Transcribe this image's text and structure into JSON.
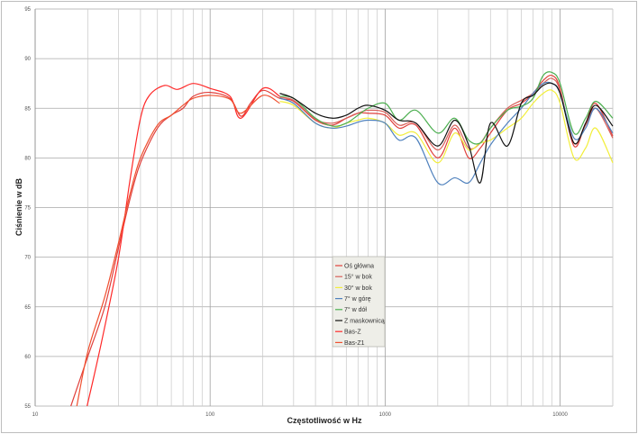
{
  "chart_data": {
    "type": "line",
    "xlabel": "Częstotliwość w Hz",
    "ylabel": "Ciśnienie w dB",
    "xscale": "log",
    "xlim": [
      10,
      20000
    ],
    "ylim": [
      55,
      95
    ],
    "xticks": [
      10,
      100,
      1000,
      10000
    ],
    "xtick_labels": [
      "10",
      "100",
      "1000",
      "10000"
    ],
    "yticks": [
      55,
      60,
      65,
      70,
      75,
      80,
      85,
      90,
      95
    ],
    "ytick_labels": [
      "55",
      "60",
      "65",
      "70",
      "75",
      "80",
      "85",
      "90",
      "95"
    ],
    "grid": true,
    "legend": "center",
    "series": [
      {
        "name": "Oś główna",
        "color": "#e0403c",
        "points": [
          [
            16,
            55
          ],
          [
            20,
            60
          ],
          [
            25,
            65
          ],
          [
            30,
            71
          ],
          [
            35,
            76
          ],
          [
            40,
            79.5
          ],
          [
            50,
            83
          ],
          [
            60,
            84.3
          ],
          [
            70,
            85
          ],
          [
            80,
            86.2
          ],
          [
            100,
            86.6
          ],
          [
            130,
            86
          ],
          [
            150,
            84.2
          ],
          [
            170,
            85.5
          ],
          [
            200,
            86.8
          ],
          [
            250,
            86
          ],
          [
            300,
            85.7
          ],
          [
            400,
            83.8
          ],
          [
            500,
            83.3
          ],
          [
            600,
            84
          ],
          [
            700,
            84.5
          ],
          [
            800,
            84.5
          ],
          [
            1000,
            84.3
          ],
          [
            1200,
            83
          ],
          [
            1500,
            83.3
          ],
          [
            2000,
            80
          ],
          [
            2500,
            83
          ],
          [
            3000,
            80
          ],
          [
            3500,
            81
          ],
          [
            4000,
            82.5
          ],
          [
            5000,
            84.8
          ],
          [
            6000,
            85.5
          ],
          [
            7000,
            86.5
          ],
          [
            8000,
            87.8
          ],
          [
            9000,
            88.3
          ],
          [
            10000,
            87
          ],
          [
            12000,
            81.2
          ],
          [
            14000,
            83.5
          ],
          [
            16000,
            85.5
          ],
          [
            20000,
            82.2
          ]
        ]
      },
      {
        "name": "15° w bok",
        "color": "#d8605a",
        "points": [
          [
            250,
            86.1
          ],
          [
            300,
            85.8
          ],
          [
            400,
            83.9
          ],
          [
            500,
            83.5
          ],
          [
            600,
            84
          ],
          [
            700,
            84.5
          ],
          [
            800,
            84.8
          ],
          [
            1000,
            84.6
          ],
          [
            1200,
            83.3
          ],
          [
            1500,
            83.5
          ],
          [
            2000,
            80.8
          ],
          [
            2500,
            83.3
          ],
          [
            3000,
            81
          ],
          [
            3500,
            81.5
          ],
          [
            4000,
            83
          ],
          [
            5000,
            85
          ],
          [
            6000,
            85.8
          ],
          [
            7000,
            86.5
          ],
          [
            8000,
            87.5
          ],
          [
            9000,
            88
          ],
          [
            10000,
            86.8
          ],
          [
            12000,
            81.5
          ],
          [
            14000,
            83.3
          ],
          [
            16000,
            85
          ],
          [
            20000,
            82
          ]
        ]
      },
      {
        "name": "30° w bok",
        "color": "#f2ee3a",
        "points": [
          [
            250,
            85.7
          ],
          [
            300,
            85.3
          ],
          [
            400,
            83.5
          ],
          [
            500,
            83
          ],
          [
            600,
            83.5
          ],
          [
            700,
            83.8
          ],
          [
            800,
            84
          ],
          [
            1000,
            83.5
          ],
          [
            1200,
            82.3
          ],
          [
            1500,
            82.5
          ],
          [
            2000,
            79.5
          ],
          [
            2500,
            82.5
          ],
          [
            3000,
            80.8
          ],
          [
            3500,
            81.5
          ],
          [
            4000,
            81.8
          ],
          [
            5000,
            83
          ],
          [
            6000,
            84
          ],
          [
            7000,
            85.5
          ],
          [
            8000,
            86.5
          ],
          [
            9000,
            86.8
          ],
          [
            10000,
            85.5
          ],
          [
            12000,
            80
          ],
          [
            14000,
            81
          ],
          [
            16000,
            83
          ],
          [
            20000,
            79.5
          ]
        ]
      },
      {
        "name": "7° w górę",
        "color": "#4f81bd",
        "points": [
          [
            250,
            86
          ],
          [
            300,
            85.5
          ],
          [
            400,
            83.5
          ],
          [
            500,
            83
          ],
          [
            600,
            83.2
          ],
          [
            700,
            83.6
          ],
          [
            800,
            83.8
          ],
          [
            1000,
            83.5
          ],
          [
            1200,
            81.8
          ],
          [
            1500,
            82
          ],
          [
            2000,
            77.5
          ],
          [
            2500,
            78
          ],
          [
            3000,
            77.5
          ],
          [
            3500,
            79.5
          ],
          [
            4000,
            81.3
          ],
          [
            5000,
            83.5
          ],
          [
            6000,
            85
          ],
          [
            7000,
            86.5
          ],
          [
            8000,
            87.5
          ],
          [
            9000,
            87.5
          ],
          [
            10000,
            86.5
          ],
          [
            12000,
            82
          ],
          [
            14000,
            83
          ],
          [
            16000,
            85
          ],
          [
            20000,
            82.5
          ]
        ]
      },
      {
        "name": "7° w dół",
        "color": "#4caf50",
        "points": [
          [
            250,
            86.2
          ],
          [
            300,
            86
          ],
          [
            400,
            84
          ],
          [
            500,
            83.2
          ],
          [
            600,
            83.5
          ],
          [
            700,
            84.3
          ],
          [
            800,
            85
          ],
          [
            1000,
            85.5
          ],
          [
            1200,
            83.8
          ],
          [
            1500,
            84.8
          ],
          [
            2000,
            82.5
          ],
          [
            2500,
            84
          ],
          [
            3000,
            81.8
          ],
          [
            3500,
            81.5
          ],
          [
            4000,
            83
          ],
          [
            5000,
            84.8
          ],
          [
            6000,
            85.2
          ],
          [
            7000,
            86
          ],
          [
            8000,
            88.3
          ],
          [
            9000,
            88.6
          ],
          [
            10000,
            87.5
          ],
          [
            12000,
            82.5
          ],
          [
            14000,
            84
          ],
          [
            16000,
            85.7
          ],
          [
            20000,
            84
          ]
        ]
      },
      {
        "name": "Z maskownicą",
        "color": "#111111",
        "points": [
          [
            250,
            86.5
          ],
          [
            300,
            86
          ],
          [
            400,
            84.5
          ],
          [
            500,
            84
          ],
          [
            600,
            84.3
          ],
          [
            700,
            85
          ],
          [
            800,
            85.3
          ],
          [
            1000,
            84.8
          ],
          [
            1200,
            83.8
          ],
          [
            1500,
            83.5
          ],
          [
            2000,
            81.2
          ],
          [
            2500,
            83.8
          ],
          [
            3000,
            81.3
          ],
          [
            3500,
            77.5
          ],
          [
            4000,
            83.5
          ],
          [
            5000,
            81.2
          ],
          [
            6000,
            85.5
          ],
          [
            7000,
            86.3
          ],
          [
            8000,
            87.3
          ],
          [
            9000,
            87.5
          ],
          [
            10000,
            86.5
          ],
          [
            12000,
            81.5
          ],
          [
            14000,
            83.5
          ],
          [
            16000,
            85.3
          ],
          [
            20000,
            83.2
          ]
        ]
      },
      {
        "name": "Bas-Z",
        "color": "#ff2a2a",
        "points": [
          [
            19.8,
            55
          ],
          [
            22,
            58.5
          ],
          [
            25,
            63
          ],
          [
            30,
            70
          ],
          [
            35,
            78
          ],
          [
            40,
            84
          ],
          [
            45,
            86.3
          ],
          [
            55,
            87.3
          ],
          [
            65,
            86.9
          ],
          [
            80,
            87.5
          ],
          [
            100,
            87
          ],
          [
            130,
            86.2
          ],
          [
            150,
            84
          ],
          [
            200,
            87
          ],
          [
            250,
            86.2
          ]
        ]
      },
      {
        "name": "Bas-Z1",
        "color": "#f05030",
        "points": [
          [
            17.3,
            55
          ],
          [
            20,
            60.5
          ],
          [
            25,
            66
          ],
          [
            30,
            71.5
          ],
          [
            35,
            76.5
          ],
          [
            40,
            80
          ],
          [
            50,
            83.3
          ],
          [
            60,
            84.3
          ],
          [
            70,
            85.3
          ],
          [
            80,
            86
          ],
          [
            100,
            86.3
          ],
          [
            130,
            85.9
          ],
          [
            150,
            84.5
          ],
          [
            200,
            86.3
          ],
          [
            250,
            85.5
          ]
        ]
      }
    ]
  }
}
